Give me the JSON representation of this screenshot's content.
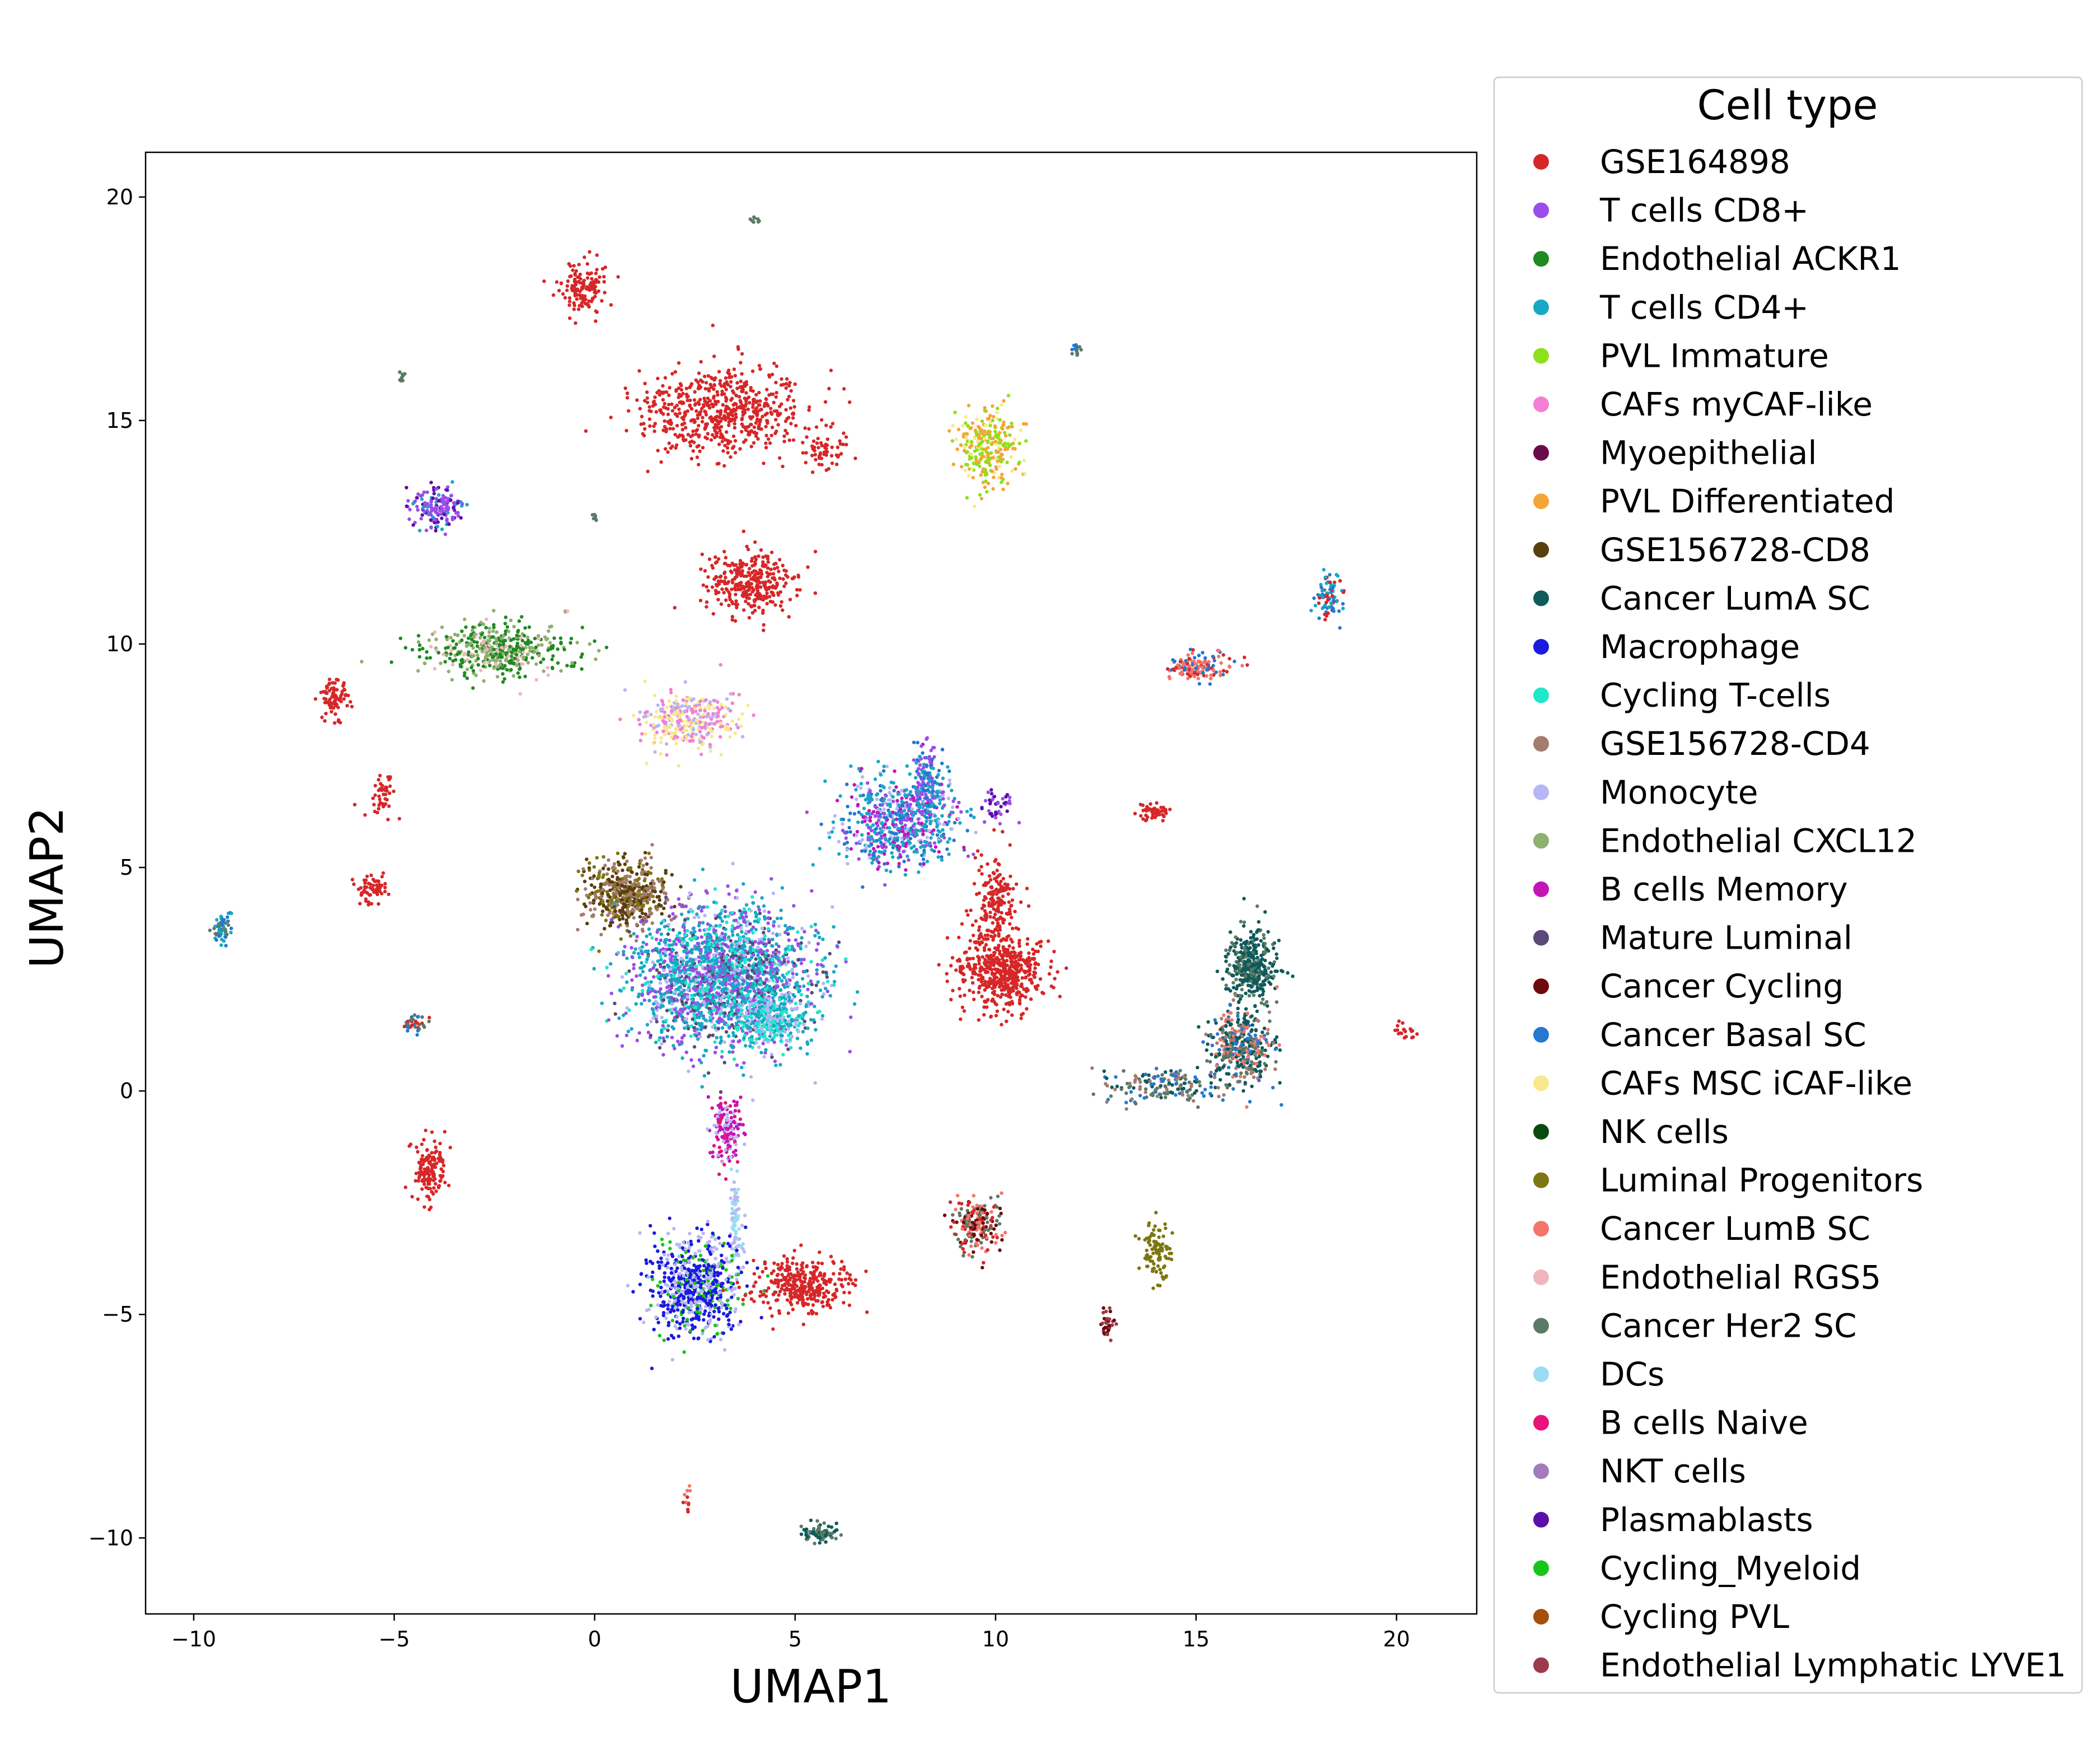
{
  "chart_data": {
    "type": "scatter",
    "title": "",
    "xlabel": "UMAP1",
    "ylabel": "UMAP2",
    "xlim": [
      -11.2,
      22
    ],
    "ylim": [
      -11.7,
      21.0
    ],
    "xticks": [
      -10,
      -5,
      0,
      5,
      10,
      15,
      20
    ],
    "yticks": [
      -10,
      -5,
      0,
      5,
      10,
      15,
      20
    ],
    "grid": false,
    "legend": {
      "title": "Cell type",
      "placement": "outside-right",
      "entries": [
        {
          "label": "GSE164898",
          "color": "#d62728"
        },
        {
          "label": "T cells CD8+",
          "color": "#9b4dea"
        },
        {
          "label": "Endothelial ACKR1",
          "color": "#1f8a22"
        },
        {
          "label": "T cells CD4+",
          "color": "#17a9c4"
        },
        {
          "label": "PVL Immature",
          "color": "#8ee01a"
        },
        {
          "label": "CAFs myCAF-like",
          "color": "#f47fd2"
        },
        {
          "label": "Myoepithelial",
          "color": "#6b0a4a"
        },
        {
          "label": "PVL Differentiated",
          "color": "#f5a536"
        },
        {
          "label": "GSE156728-CD8",
          "color": "#5a3e0e"
        },
        {
          "label": "Cancer LumA SC",
          "color": "#0f5a5a"
        },
        {
          "label": "Macrophage",
          "color": "#1a1ae0"
        },
        {
          "label": "Cycling T-cells",
          "color": "#1ee8c8"
        },
        {
          "label": "GSE156728-CD4",
          "color": "#a57b6e"
        },
        {
          "label": "Monocyte",
          "color": "#b8b6f5"
        },
        {
          "label": "Endothelial CXCL12",
          "color": "#8fb070"
        },
        {
          "label": "B cells Memory",
          "color": "#c414b8"
        },
        {
          "label": "Mature Luminal",
          "color": "#5a4a78"
        },
        {
          "label": "Cancer Cycling",
          "color": "#6e0a0a"
        },
        {
          "label": "Cancer Basal SC",
          "color": "#2478d0"
        },
        {
          "label": "CAFs MSC iCAF-like",
          "color": "#f8e98c"
        },
        {
          "label": "NK cells",
          "color": "#0a4a0f"
        },
        {
          "label": "Luminal Progenitors",
          "color": "#7e7610"
        },
        {
          "label": "Cancer LumB SC",
          "color": "#f4756a"
        },
        {
          "label": "Endothelial RGS5",
          "color": "#f0b6bd"
        },
        {
          "label": "Cancer Her2 SC",
          "color": "#5a7a66"
        },
        {
          "label": "DCs",
          "color": "#9adcf2"
        },
        {
          "label": "B cells Naive",
          "color": "#e8127a"
        },
        {
          "label": "NKT cells",
          "color": "#a27cbc"
        },
        {
          "label": "Plasmablasts",
          "color": "#5a10a8"
        },
        {
          "label": "Cycling_Myeloid",
          "color": "#18c41a"
        },
        {
          "label": "Cycling PVL",
          "color": "#a5500a"
        },
        {
          "label": "Endothelial Lymphatic LYVE1",
          "color": "#9a3a4a"
        }
      ]
    },
    "clusters": [
      {
        "cx": -0.3,
        "cy": 18.0,
        "rx": 0.5,
        "ry": 0.5,
        "n": 140,
        "colors": [
          0
        ]
      },
      {
        "cx": 3.2,
        "cy": 15.2,
        "rx": 1.9,
        "ry": 0.9,
        "n": 600,
        "colors": [
          0
        ]
      },
      {
        "cx": 5.7,
        "cy": 14.3,
        "rx": 0.5,
        "ry": 0.4,
        "n": 60,
        "colors": [
          0
        ]
      },
      {
        "cx": 3.9,
        "cy": 11.4,
        "rx": 1.0,
        "ry": 0.65,
        "n": 320,
        "colors": [
          0
        ]
      },
      {
        "cx": -6.5,
        "cy": 8.8,
        "rx": 0.3,
        "ry": 0.45,
        "n": 80,
        "colors": [
          0
        ]
      },
      {
        "cx": -5.3,
        "cy": 6.6,
        "rx": 0.3,
        "ry": 0.4,
        "n": 45,
        "colors": [
          0
        ]
      },
      {
        "cx": -5.5,
        "cy": 4.5,
        "rx": 0.35,
        "ry": 0.35,
        "n": 60,
        "colors": [
          0
        ]
      },
      {
        "cx": -4.1,
        "cy": -1.8,
        "rx": 0.35,
        "ry": 0.65,
        "n": 140,
        "colors": [
          0
        ]
      },
      {
        "cx": -3.9,
        "cy": 13.05,
        "rx": 0.6,
        "ry": 0.4,
        "n": 160,
        "colors": [
          1,
          1,
          1,
          28,
          3
        ]
      },
      {
        "cx": -2.4,
        "cy": 9.9,
        "rx": 1.6,
        "ry": 0.55,
        "n": 460,
        "colors": [
          2,
          2,
          2,
          14,
          14,
          23
        ]
      },
      {
        "cx": 2.3,
        "cy": 8.3,
        "rx": 1.1,
        "ry": 0.6,
        "n": 320,
        "colors": [
          5,
          5,
          19,
          19,
          13
        ]
      },
      {
        "cx": 9.8,
        "cy": 14.4,
        "rx": 0.75,
        "ry": 0.7,
        "n": 260,
        "colors": [
          4,
          4,
          7,
          7,
          19
        ]
      },
      {
        "cx": 7.6,
        "cy": 6.0,
        "rx": 1.3,
        "ry": 0.9,
        "n": 650,
        "colors": [
          3,
          3,
          18,
          13,
          1,
          15
        ]
      },
      {
        "cx": 8.3,
        "cy": 6.9,
        "rx": 0.4,
        "ry": 0.7,
        "n": 150,
        "colors": [
          3,
          1,
          18
        ]
      },
      {
        "cx": 10.0,
        "cy": 4.2,
        "rx": 0.5,
        "ry": 0.9,
        "n": 180,
        "colors": [
          0
        ]
      },
      {
        "cx": 10.2,
        "cy": 2.7,
        "rx": 1.0,
        "ry": 0.75,
        "n": 500,
        "colors": [
          0
        ]
      },
      {
        "cx": 0.8,
        "cy": 4.4,
        "rx": 0.9,
        "ry": 0.65,
        "n": 520,
        "colors": [
          12,
          12,
          8,
          21,
          8
        ]
      },
      {
        "cx": 3.2,
        "cy": 2.5,
        "rx": 2.0,
        "ry": 1.4,
        "n": 2200,
        "colors": [
          3,
          3,
          3,
          1,
          1,
          11,
          13,
          16
        ]
      },
      {
        "cx": 4.4,
        "cy": 1.6,
        "rx": 0.8,
        "ry": 0.5,
        "n": 300,
        "colors": [
          11,
          3,
          13
        ]
      },
      {
        "cx": 3.3,
        "cy": -0.9,
        "rx": 0.35,
        "ry": 0.65,
        "n": 160,
        "colors": [
          15,
          15,
          26,
          13
        ]
      },
      {
        "cx": 3.5,
        "cy": -2.9,
        "rx": 0.12,
        "ry": 1.0,
        "n": 80,
        "colors": [
          25,
          13
        ]
      },
      {
        "cx": 2.5,
        "cy": -4.4,
        "rx": 1.0,
        "ry": 1.0,
        "n": 700,
        "colors": [
          10,
          10,
          10,
          13,
          13,
          29
        ]
      },
      {
        "cx": 5.2,
        "cy": -4.35,
        "rx": 1.1,
        "ry": 0.5,
        "n": 330,
        "colors": [
          0
        ]
      },
      {
        "cx": 9.5,
        "cy": -3.0,
        "rx": 0.5,
        "ry": 0.55,
        "n": 200,
        "colors": [
          17,
          24,
          22,
          0
        ]
      },
      {
        "cx": 16.4,
        "cy": 2.8,
        "rx": 0.55,
        "ry": 0.7,
        "n": 380,
        "colors": [
          9,
          9,
          24
        ]
      },
      {
        "cx": 16.1,
        "cy": 1.0,
        "rx": 0.75,
        "ry": 0.75,
        "n": 420,
        "colors": [
          9,
          9,
          24,
          18,
          22,
          12
        ]
      },
      {
        "cx": 14.2,
        "cy": 0.1,
        "rx": 1.3,
        "ry": 0.35,
        "n": 170,
        "colors": [
          18,
          9,
          24,
          12
        ]
      },
      {
        "cx": 15.0,
        "cy": 9.5,
        "rx": 0.7,
        "ry": 0.28,
        "n": 150,
        "colors": [
          22,
          22,
          0,
          18
        ]
      },
      {
        "cx": 18.3,
        "cy": 11.1,
        "rx": 0.28,
        "ry": 0.5,
        "n": 80,
        "colors": [
          18,
          0,
          3
        ]
      },
      {
        "cx": 14.0,
        "cy": 6.25,
        "rx": 0.35,
        "ry": 0.15,
        "n": 50,
        "colors": [
          0
        ]
      },
      {
        "cx": 14.0,
        "cy": -3.6,
        "rx": 0.3,
        "ry": 0.6,
        "n": 100,
        "colors": [
          21
        ]
      },
      {
        "cx": 12.8,
        "cy": -5.2,
        "rx": 0.15,
        "ry": 0.3,
        "n": 40,
        "colors": [
          31,
          17
        ]
      },
      {
        "cx": 5.6,
        "cy": -9.9,
        "rx": 0.45,
        "ry": 0.2,
        "n": 80,
        "colors": [
          9,
          24
        ]
      },
      {
        "cx": -9.3,
        "cy": 3.6,
        "rx": 0.2,
        "ry": 0.3,
        "n": 60,
        "colors": [
          18,
          24,
          3
        ]
      },
      {
        "cx": -4.5,
        "cy": 1.5,
        "rx": 0.3,
        "ry": 0.2,
        "n": 35,
        "colors": [
          18,
          0,
          24
        ]
      },
      {
        "cx": 10.0,
        "cy": 6.4,
        "rx": 0.4,
        "ry": 0.35,
        "n": 40,
        "colors": [
          28,
          1
        ]
      },
      {
        "cx": 20.2,
        "cy": 1.3,
        "rx": 0.25,
        "ry": 0.15,
        "n": 20,
        "colors": [
          0
        ]
      },
      {
        "cx": 12.0,
        "cy": 16.6,
        "rx": 0.12,
        "ry": 0.15,
        "n": 15,
        "colors": [
          18,
          24
        ]
      },
      {
        "cx": 2.3,
        "cy": -9.1,
        "rx": 0.08,
        "ry": 0.25,
        "n": 12,
        "colors": [
          0,
          22
        ]
      },
      {
        "cx": 4.0,
        "cy": 19.5,
        "rx": 0.1,
        "ry": 0.1,
        "n": 8,
        "colors": [
          24
        ]
      },
      {
        "cx": -4.8,
        "cy": 15.95,
        "rx": 0.1,
        "ry": 0.1,
        "n": 8,
        "colors": [
          24
        ]
      },
      {
        "cx": 0.0,
        "cy": 12.8,
        "rx": 0.08,
        "ry": 0.08,
        "n": 6,
        "colors": [
          24
        ]
      }
    ]
  }
}
